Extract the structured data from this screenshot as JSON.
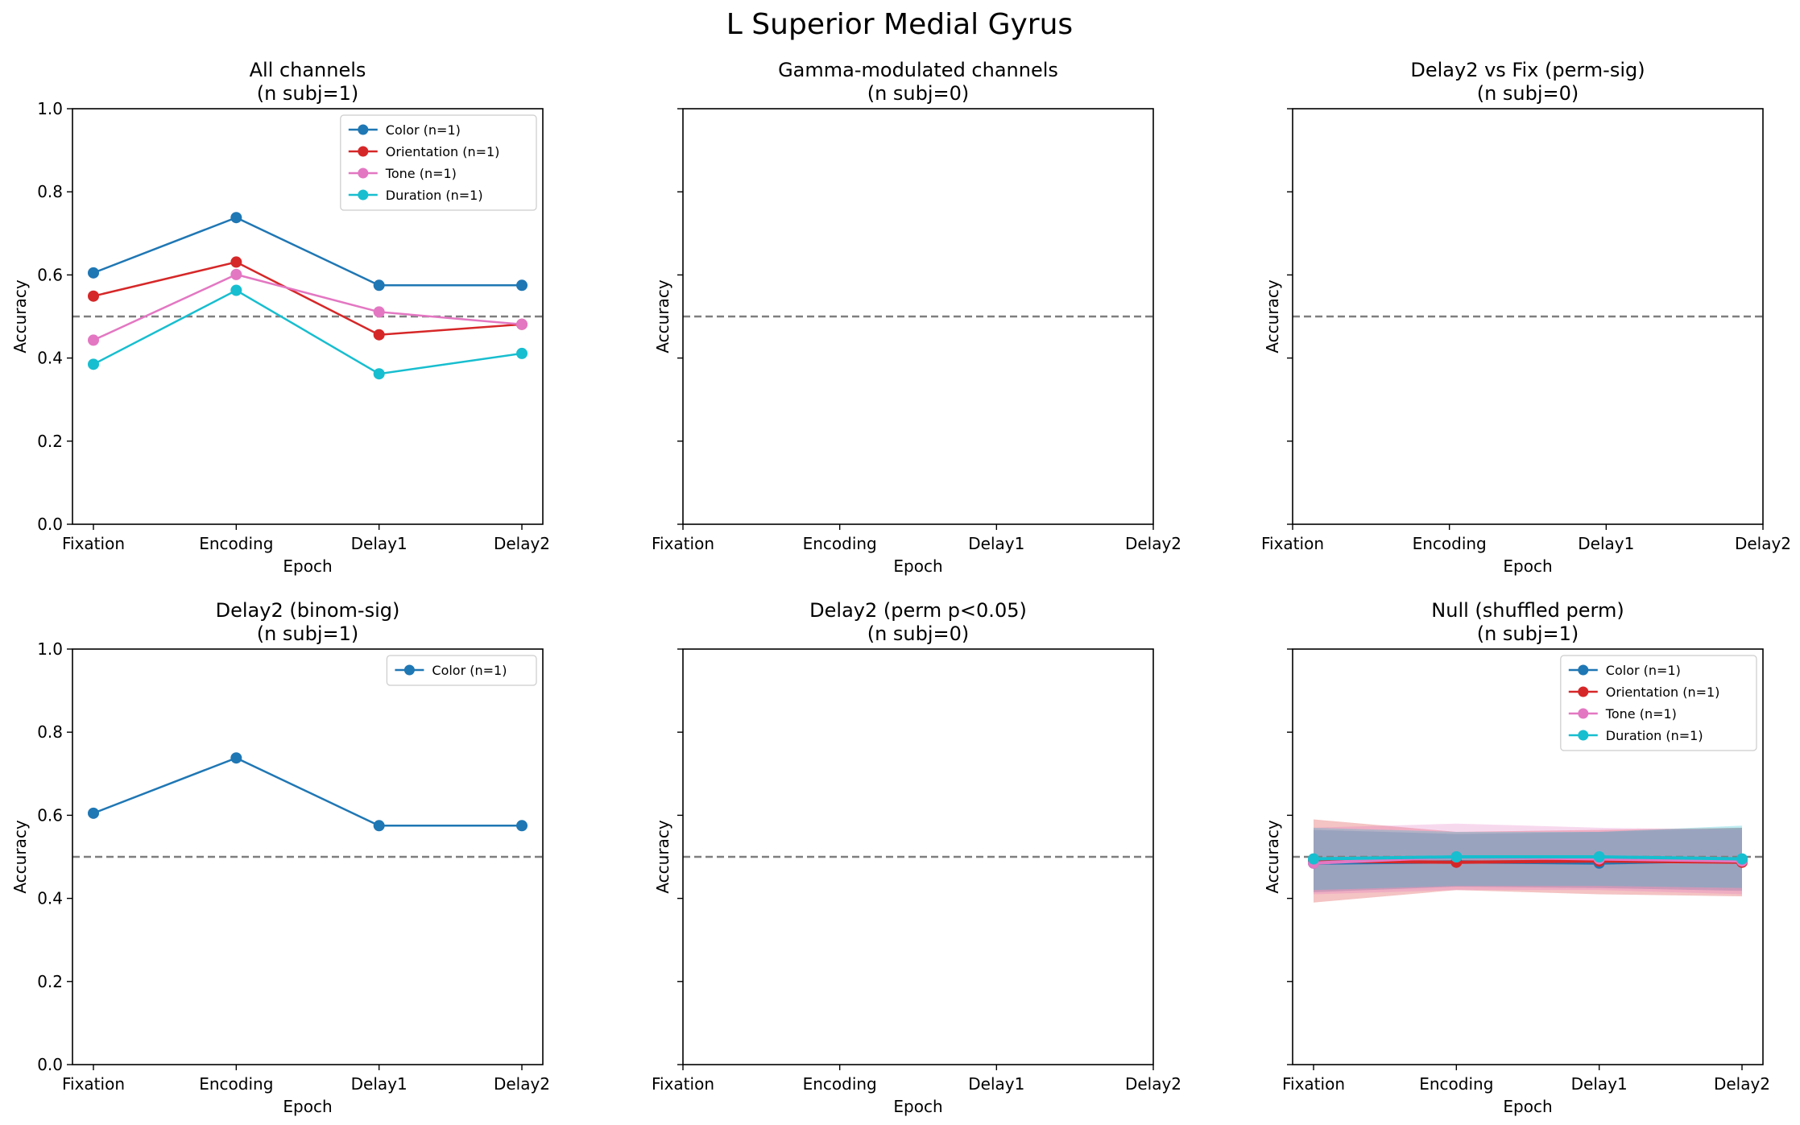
{
  "figure": {
    "suptitle": "L Superior Medial Gyrus"
  },
  "colors": {
    "Color": "#1f77b4",
    "Orientation": "#d62728",
    "Tone": "#e377c2",
    "Duration": "#17becf",
    "chance_line": "#7f7f7f"
  },
  "chart_data": [
    {
      "type": "line",
      "title": "All channels",
      "subtitle": "(n subj=1)",
      "xlabel": "Epoch",
      "ylabel": "Accuracy",
      "categories": [
        "Fixation",
        "Encoding",
        "Delay1",
        "Delay2"
      ],
      "ylim": [
        0,
        1
      ],
      "yticks": [
        "0.0",
        "0.2",
        "0.4",
        "0.6",
        "0.8",
        "1.0"
      ],
      "chance": 0.5,
      "legend": "top-right",
      "series": [
        {
          "name": "Color (n=1)",
          "key": "Color",
          "values": [
            0.605,
            0.738,
            0.575,
            0.575
          ]
        },
        {
          "name": "Orientation (n=1)",
          "key": "Orientation",
          "values": [
            0.549,
            0.631,
            0.456,
            0.481
          ]
        },
        {
          "name": "Tone (n=1)",
          "key": "Tone",
          "values": [
            0.443,
            0.601,
            0.511,
            0.481
          ]
        },
        {
          "name": "Duration (n=1)",
          "key": "Duration",
          "values": [
            0.385,
            0.563,
            0.362,
            0.411
          ]
        }
      ]
    },
    {
      "type": "line",
      "title": "Gamma-modulated channels",
      "subtitle": "(n subj=0)",
      "xlabel": "Epoch",
      "ylabel": "Accuracy",
      "categories": [
        "Fixation",
        "Encoding",
        "Delay1",
        "Delay2"
      ],
      "ylim": [
        0,
        1
      ],
      "yticks": [],
      "chance": 0.5,
      "series": []
    },
    {
      "type": "line",
      "title": "Delay2 vs Fix (perm-sig)",
      "subtitle": "(n subj=0)",
      "xlabel": "Epoch",
      "ylabel": "Accuracy",
      "categories": [
        "Fixation",
        "Encoding",
        "Delay1",
        "Delay2"
      ],
      "ylim": [
        0,
        1
      ],
      "yticks": [],
      "chance": 0.5,
      "series": []
    },
    {
      "type": "line",
      "title": "Delay2 (binom-sig)",
      "subtitle": "(n subj=1)",
      "xlabel": "Epoch",
      "ylabel": "Accuracy",
      "categories": [
        "Fixation",
        "Encoding",
        "Delay1",
        "Delay2"
      ],
      "ylim": [
        0,
        1
      ],
      "yticks": [
        "0.0",
        "0.2",
        "0.4",
        "0.6",
        "0.8",
        "1.0"
      ],
      "chance": 0.5,
      "legend": "top-right",
      "series": [
        {
          "name": "Color (n=1)",
          "key": "Color",
          "values": [
            0.605,
            0.738,
            0.575,
            0.575
          ]
        }
      ]
    },
    {
      "type": "line",
      "title": "Delay2 (perm p<0.05)",
      "subtitle": "(n subj=0)",
      "xlabel": "Epoch",
      "ylabel": "Accuracy",
      "categories": [
        "Fixation",
        "Encoding",
        "Delay1",
        "Delay2"
      ],
      "ylim": [
        0,
        1
      ],
      "yticks": [],
      "chance": 0.5,
      "series": []
    },
    {
      "type": "area",
      "title": "Null (shuffled perm)",
      "subtitle": "(n subj=1)",
      "xlabel": "Epoch",
      "ylabel": "Accuracy",
      "categories": [
        "Fixation",
        "Encoding",
        "Delay1",
        "Delay2"
      ],
      "ylim": [
        0,
        1
      ],
      "yticks": [],
      "chance": 0.5,
      "legend": "top-right",
      "series": [
        {
          "name": "Color (n=1)",
          "key": "Color",
          "values": [
            0.485,
            0.488,
            0.485,
            0.492
          ],
          "lower": [
            0.415,
            0.428,
            0.425,
            0.418
          ],
          "upper": [
            0.565,
            0.555,
            0.56,
            0.57
          ]
        },
        {
          "name": "Orientation (n=1)",
          "key": "Orientation",
          "values": [
            0.49,
            0.487,
            0.49,
            0.487
          ],
          "lower": [
            0.39,
            0.42,
            0.41,
            0.405
          ],
          "upper": [
            0.59,
            0.56,
            0.565,
            0.57
          ]
        },
        {
          "name": "Tone (n=1)",
          "key": "Tone",
          "values": [
            0.485,
            0.5,
            0.495,
            0.49
          ],
          "lower": [
            0.41,
            0.42,
            0.42,
            0.41
          ],
          "upper": [
            0.57,
            0.58,
            0.57,
            0.565
          ]
        },
        {
          "name": "Duration (n=1)",
          "key": "Duration",
          "values": [
            0.495,
            0.5,
            0.5,
            0.495
          ],
          "lower": [
            0.42,
            0.43,
            0.43,
            0.425
          ],
          "upper": [
            0.57,
            0.56,
            0.56,
            0.575
          ]
        }
      ]
    }
  ]
}
